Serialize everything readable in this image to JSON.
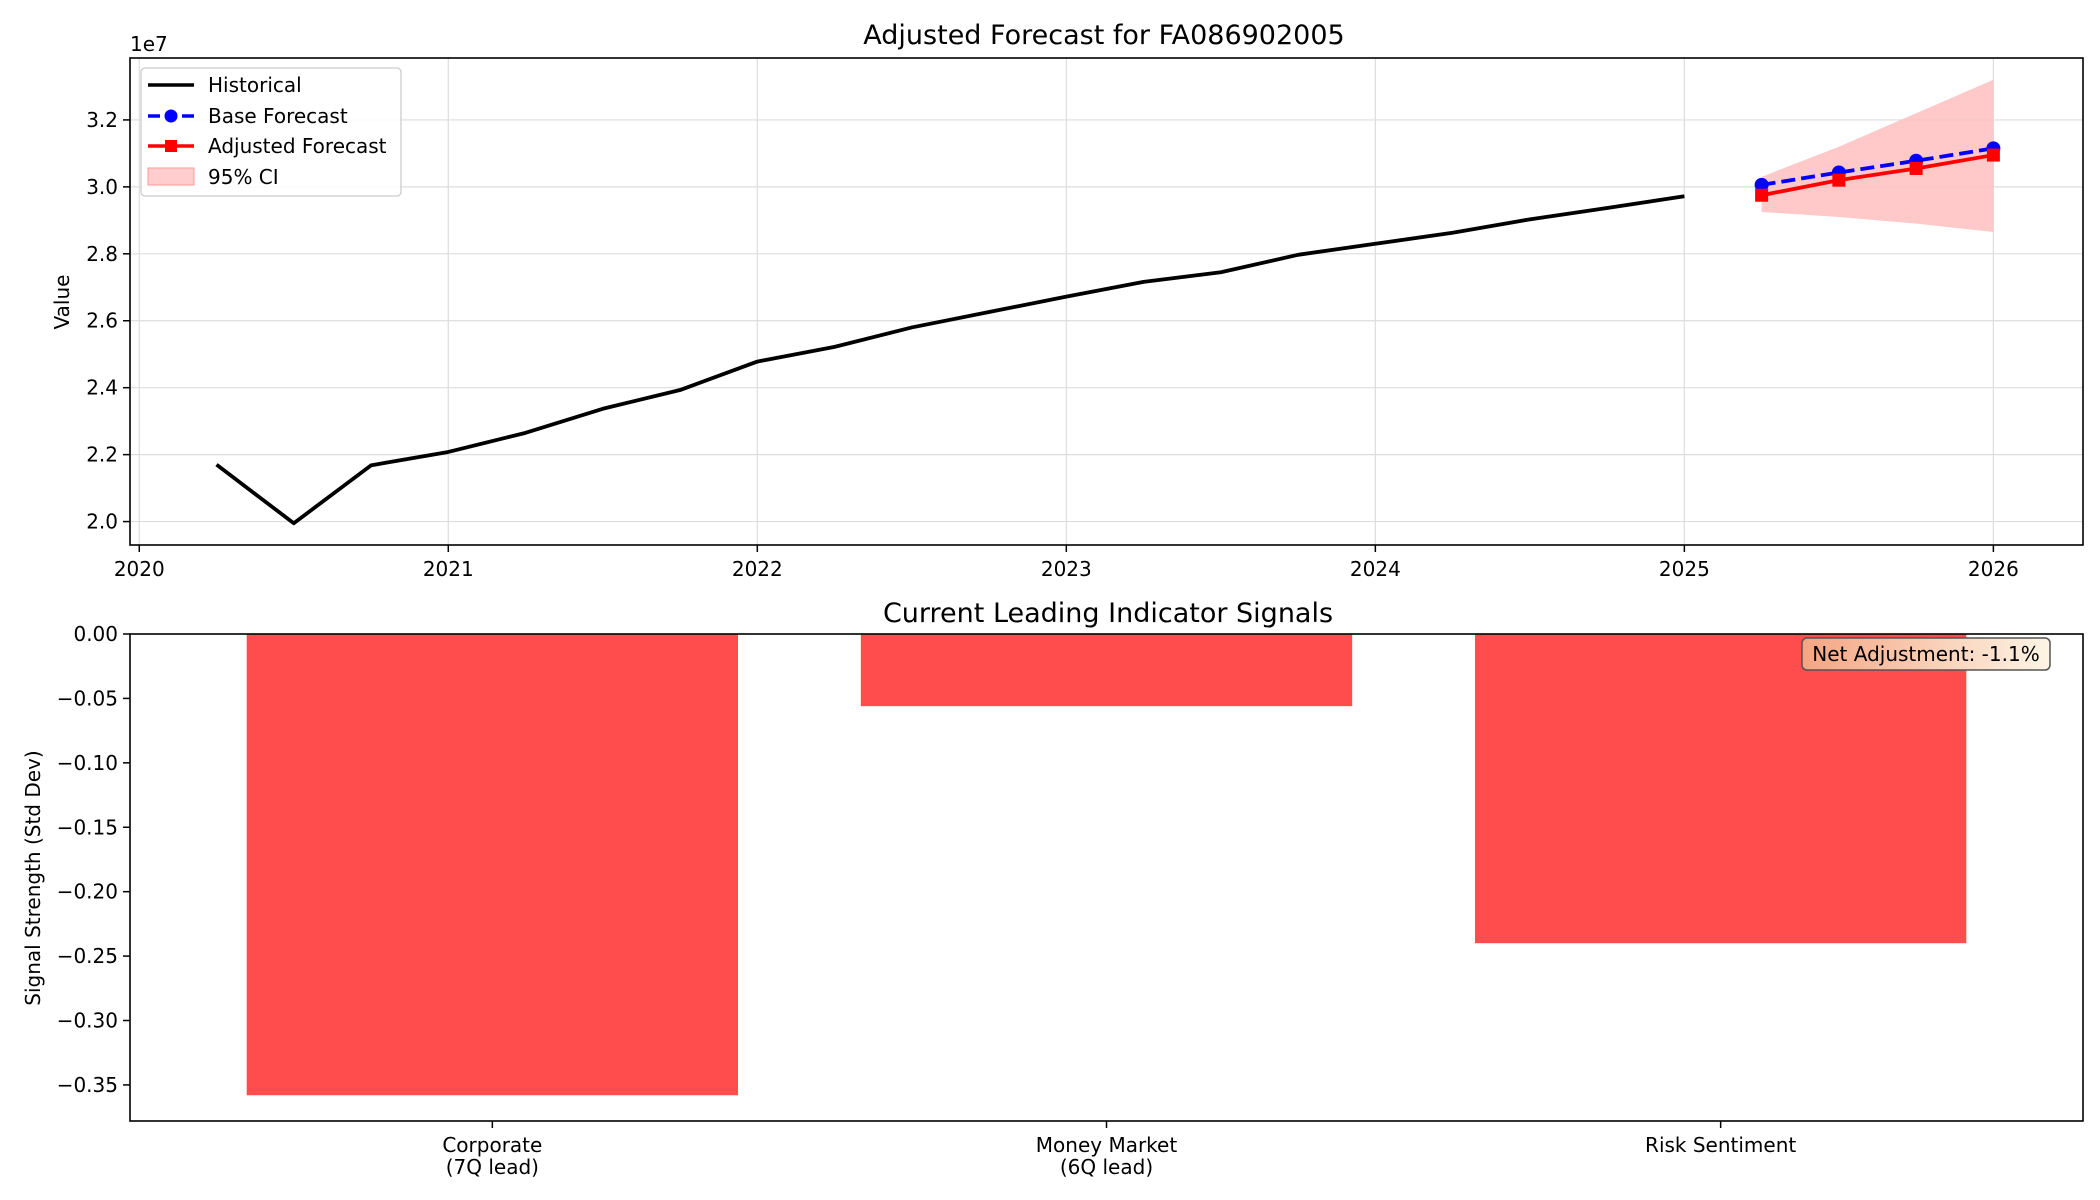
{
  "chart_data": [
    {
      "type": "line",
      "title": "Adjusted Forecast for FA086902005",
      "xlabel": "",
      "ylabel": "Value",
      "y_scale_label": "1e7",
      "xlim": [
        2019.97,
        2026.29
      ],
      "ylim": [
        1.93,
        3.385
      ],
      "x_ticks": [
        2020,
        2021,
        2022,
        2023,
        2024,
        2025,
        2026
      ],
      "x_tick_labels": [
        "2020",
        "2021",
        "2022",
        "2023",
        "2024",
        "2025",
        "2026"
      ],
      "y_ticks": [
        2.0,
        2.2,
        2.4,
        2.6,
        2.8,
        3.0,
        3.2
      ],
      "y_tick_labels": [
        "2.0",
        "2.2",
        "2.4",
        "2.6",
        "2.8",
        "3.0",
        "3.2"
      ],
      "grid": true,
      "legend_position": "upper-left",
      "series": [
        {
          "name": "Historical",
          "color": "#000000",
          "style": "solid",
          "x": [
            2020.25,
            2020.5,
            2020.75,
            2021.0,
            2021.25,
            2021.5,
            2021.75,
            2022.0,
            2022.25,
            2022.5,
            2022.75,
            2023.0,
            2023.25,
            2023.5,
            2023.75,
            2024.0,
            2024.25,
            2024.5,
            2024.75,
            2025.0
          ],
          "y": [
            2.17,
            1.995,
            2.168,
            2.208,
            2.265,
            2.337,
            2.393,
            2.478,
            2.522,
            2.58,
            2.626,
            2.672,
            2.716,
            2.745,
            2.797,
            2.83,
            2.863,
            2.903,
            2.937,
            2.972
          ]
        },
        {
          "name": "Base Forecast",
          "color": "#0000ff",
          "style": "dashed",
          "marker": "circle",
          "x": [
            2025.25,
            2025.5,
            2025.75,
            2026.0
          ],
          "y": [
            3.006,
            3.043,
            3.078,
            3.115
          ]
        },
        {
          "name": "Adjusted Forecast",
          "color": "#ff0000",
          "style": "solid",
          "marker": "square",
          "x": [
            2025.25,
            2025.5,
            2025.75,
            2026.0
          ],
          "y": [
            2.975,
            3.02,
            3.055,
            3.095
          ]
        }
      ],
      "band": {
        "name": "95% CI",
        "color": "#ffc0c0",
        "x": [
          2025.25,
          2025.5,
          2025.75,
          2026.0
        ],
        "lower": [
          2.925,
          2.91,
          2.89,
          2.865
        ],
        "upper": [
          3.03,
          3.12,
          3.22,
          3.32
        ]
      }
    },
    {
      "type": "bar",
      "title": "Current Leading Indicator Signals",
      "xlabel": "",
      "ylabel": "Signal Strength (Std Dev)",
      "categories": [
        [
          "Corporate",
          "(7Q lead)"
        ],
        [
          "Money Market",
          "(6Q lead)"
        ],
        [
          "Risk Sentiment"
        ]
      ],
      "values": [
        -0.358,
        -0.056,
        -0.24
      ],
      "bar_color": "#ff4c4c",
      "ylim": [
        -0.378,
        0.0
      ],
      "y_ticks": [
        0.0,
        -0.05,
        -0.1,
        -0.15,
        -0.2,
        -0.25,
        -0.3,
        -0.35
      ],
      "y_tick_labels": [
        "0.00",
        "−0.05",
        "−0.10",
        "−0.15",
        "−0.20",
        "−0.25",
        "−0.30",
        "−0.35"
      ],
      "grid": false,
      "annotation": {
        "text": "Net Adjustment: -1.1%",
        "position": "top-right",
        "box_color": "#f4a582",
        "box_fill_end": "#fdf5e6"
      }
    }
  ]
}
